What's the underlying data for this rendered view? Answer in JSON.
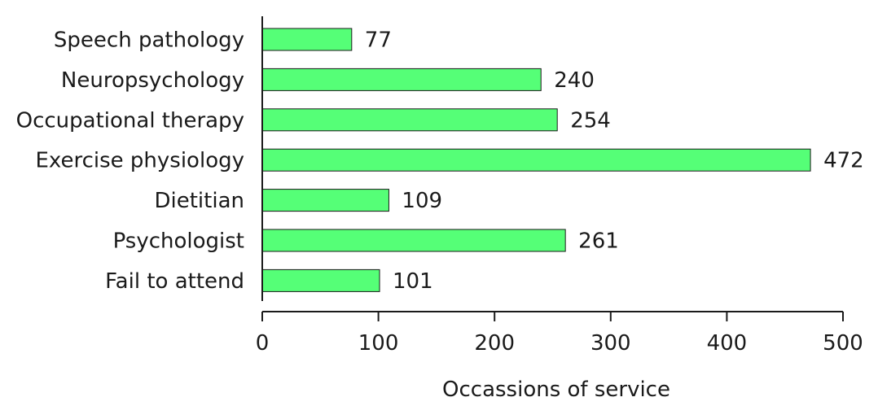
{
  "chart_data": {
    "type": "bar",
    "orientation": "horizontal",
    "categories": [
      "Speech pathology",
      "Neuropsychology",
      "Occupational therapy",
      "Exercise physiology",
      "Dietitian",
      "Psychologist",
      "Fail to attend"
    ],
    "values": [
      77,
      240,
      254,
      472,
      109,
      261,
      101
    ],
    "xlabel": "Occassions of service",
    "ylabel": "",
    "xlim": [
      0,
      500
    ],
    "xticks": [
      0,
      100,
      200,
      300,
      400,
      500
    ],
    "grid": false,
    "bar_color": "#55ff77"
  }
}
